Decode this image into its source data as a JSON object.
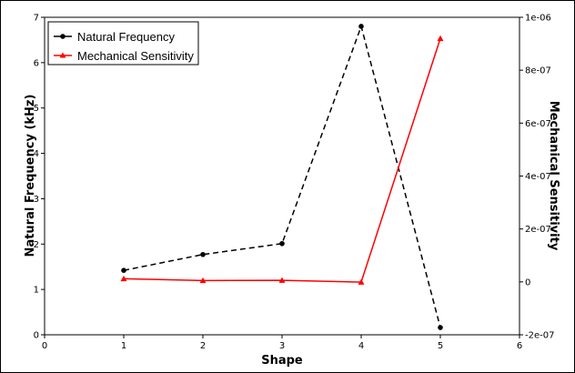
{
  "chart_data": {
    "type": "line",
    "x": [
      1,
      2,
      3,
      4,
      5
    ],
    "xlabel": "Shape",
    "xlim": [
      0,
      6
    ],
    "xticks": [
      "0",
      "1",
      "2",
      "3",
      "4",
      "5",
      "6"
    ],
    "series": [
      {
        "name": "Natural Frequency",
        "axis": "left",
        "values": [
          1.42,
          1.77,
          2.01,
          6.8,
          0.16
        ],
        "color": "#000000",
        "line_style": "dashed",
        "marker": "circle"
      },
      {
        "name": "Mechanical Sensitivity",
        "axis": "right",
        "values": [
          1.2e-08,
          5e-09,
          6e-09,
          -1e-09,
          9.2e-07
        ],
        "color": "#ff0000",
        "line_style": "solid",
        "marker": "triangle"
      }
    ],
    "ylabel_left": "Natural Frequency (kHz)",
    "ylim_left": [
      0,
      7
    ],
    "yticks_left": [
      "0",
      "1",
      "2",
      "3",
      "4",
      "5",
      "6",
      "7"
    ],
    "ylabel_right": "Mechanical Sensitivity",
    "ylim_right": [
      -2e-07,
      1e-06
    ],
    "yticks_right": [
      "-2e-07",
      "0",
      "2e-07",
      "4e-07",
      "6e-07",
      "8e-07",
      "1e-06"
    ],
    "yticks_right_values": [
      -2e-07,
      0,
      2e-07,
      4e-07,
      6e-07,
      8e-07,
      1e-06
    ],
    "legend_position": "top-left",
    "grid": false
  }
}
